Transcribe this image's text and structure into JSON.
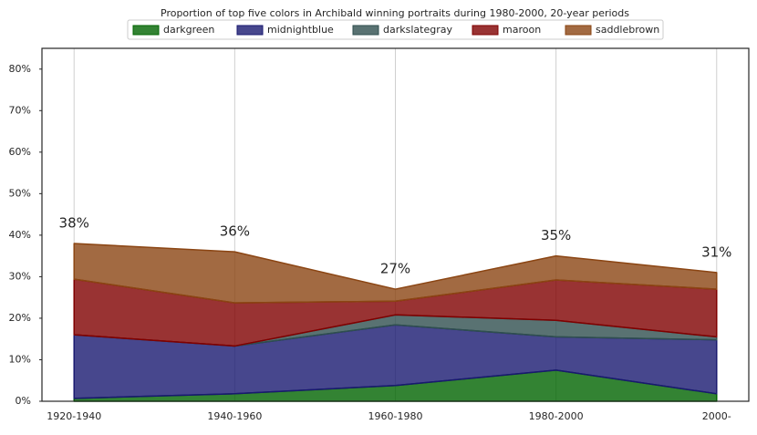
{
  "chart_data": {
    "type": "stacked_area",
    "title": "Proportion of top five colors in Archibald winning portraits during 1980-2000, 20-year periods",
    "categories": [
      "1920-1940",
      "1940-1960",
      "1960-1980",
      "1980-2000",
      "2000-"
    ],
    "series": [
      {
        "name": "darkgreen",
        "color": "#006400",
        "values": [
          0.7,
          1.8,
          3.8,
          7.5,
          1.8
        ]
      },
      {
        "name": "midnightblue",
        "color": "#191970",
        "values": [
          15.3,
          11.5,
          14.6,
          8.0,
          13.0
        ]
      },
      {
        "name": "darkslategray",
        "color": "#2f4f4f",
        "values": [
          0,
          0,
          2.4,
          4.0,
          0.7
        ]
      },
      {
        "name": "maroon",
        "color": "#800000",
        "values": [
          13.4,
          10.4,
          3.3,
          9.7,
          11.5
        ]
      },
      {
        "name": "saddlebrown",
        "color": "#8b4513",
        "values": [
          8.6,
          12.3,
          2.9,
          5.8,
          4.0
        ]
      }
    ],
    "annotations": [
      "38%",
      "36%",
      "27%",
      "35%",
      "31%"
    ],
    "ylim": [
      0,
      85
    ],
    "yticks": [
      {
        "value": 0,
        "label": "0%"
      },
      {
        "value": 10,
        "label": "10%"
      },
      {
        "value": 20,
        "label": "20%"
      },
      {
        "value": 30,
        "label": "30%"
      },
      {
        "value": 40,
        "label": "40%"
      },
      {
        "value": 50,
        "label": "50%"
      },
      {
        "value": 60,
        "label": "60%"
      },
      {
        "value": 70,
        "label": "70%"
      },
      {
        "value": 80,
        "label": "80%"
      }
    ],
    "grid": true,
    "legend": "top"
  }
}
